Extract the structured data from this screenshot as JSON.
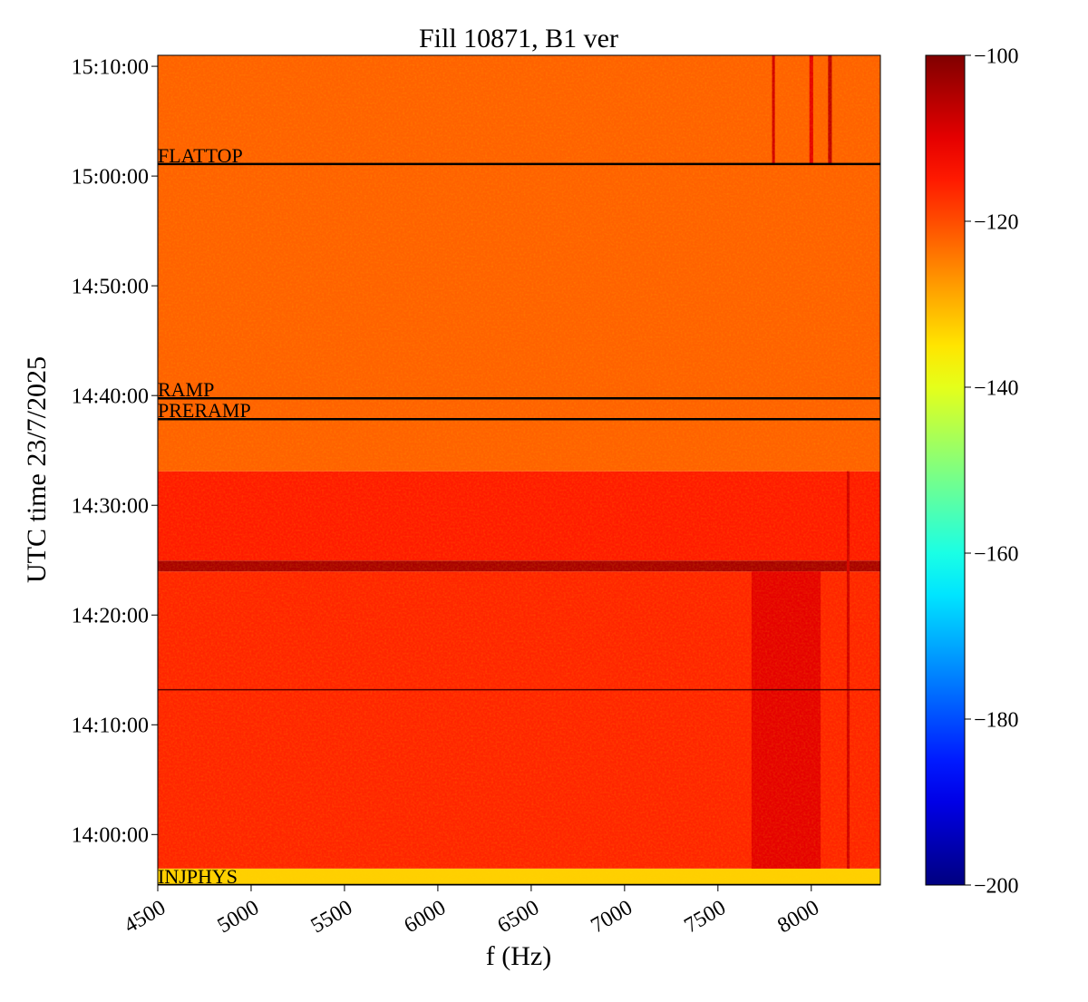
{
  "chart_data": {
    "type": "spectrogram",
    "title": "Fill 10871, B1 ver",
    "xlabel": "f (Hz)",
    "ylabel": "UTC time 23/7/2025",
    "xlim": [
      4500,
      8370
    ],
    "xticks": [
      4500,
      5000,
      5500,
      6000,
      6500,
      7000,
      7500,
      8000
    ],
    "ylim": [
      835.4,
      911.0
    ],
    "yticks": [
      {
        "value": 840,
        "label": "14:00:00"
      },
      {
        "value": 850,
        "label": "14:10:00"
      },
      {
        "value": 860,
        "label": "14:20:00"
      },
      {
        "value": 870,
        "label": "14:30:00"
      },
      {
        "value": 880,
        "label": "14:40:00"
      },
      {
        "value": 890,
        "label": "14:50:00"
      },
      {
        "value": 900,
        "label": "15:00:00"
      },
      {
        "value": 910,
        "label": "15:10:00"
      }
    ],
    "colormap": "jet",
    "clim": [
      -200,
      -100
    ],
    "cticks": [
      {
        "value": -100,
        "label": "−100"
      },
      {
        "value": -120,
        "label": "−120"
      },
      {
        "value": -140,
        "label": "−140"
      },
      {
        "value": -160,
        "label": "−160"
      },
      {
        "value": -180,
        "label": "−180"
      },
      {
        "value": -200,
        "label": "−200"
      }
    ],
    "cells": [
      {
        "t0": 835.4,
        "t1": 836.9,
        "f0": 4500,
        "f1": 8370,
        "value": -133
      },
      {
        "t0": 836.9,
        "t1": 863.97,
        "f0": 4500,
        "f1": 8370,
        "value": -116
      },
      {
        "t0": 863.97,
        "t1": 864.96,
        "f0": 4500,
        "f1": 8370,
        "value": -104
      },
      {
        "t0": 864.96,
        "t1": 873.1,
        "f0": 4500,
        "f1": 8370,
        "value": -115
      },
      {
        "t0": 873.1,
        "t1": 911.0,
        "f0": 4500,
        "f1": 8370,
        "value": -122
      },
      {
        "t0": 836.9,
        "t1": 863.97,
        "f0": 7680,
        "f1": 8050,
        "value": -110
      },
      {
        "t0": 901.1,
        "t1": 911.0,
        "f0": 8090,
        "f1": 8110,
        "value": -106
      },
      {
        "t0": 901.1,
        "t1": 911.0,
        "f0": 7790,
        "f1": 7805,
        "value": -108
      },
      {
        "t0": 901.1,
        "t1": 911.0,
        "f0": 7990,
        "f1": 8010,
        "value": -110
      },
      {
        "t0": 836.9,
        "t1": 873.1,
        "f0": 8190,
        "f1": 8205,
        "value": -108
      }
    ],
    "markers": [
      {
        "time": 901.1,
        "label": "FLATTOP"
      },
      {
        "time": 879.75,
        "label": "RAMP"
      },
      {
        "time": 877.85,
        "label": "PRERAMP"
      },
      {
        "time": 853.2,
        "label": null
      },
      {
        "time": 835.4,
        "label": "INJPHYS"
      }
    ]
  }
}
